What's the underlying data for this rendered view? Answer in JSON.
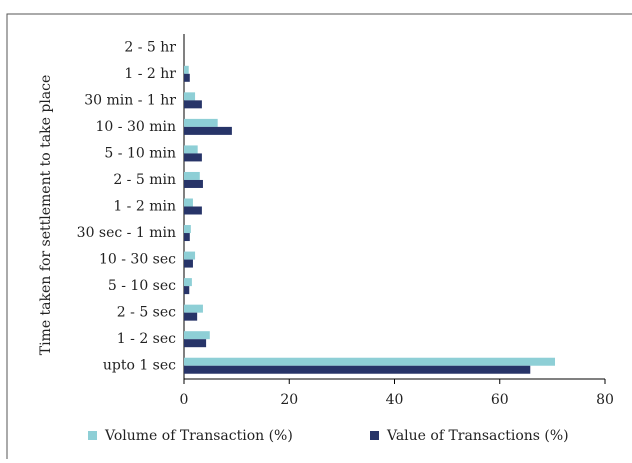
{
  "chart_data": {
    "type": "hbar",
    "y_label": "Time taken for settlement to take place",
    "categories": [
      "upto 1 sec",
      "1 - 2 sec",
      "2 - 5 sec",
      "5 - 10 sec",
      "10 - 30 sec",
      "30 sec - 1 min",
      "1 - 2 min",
      "2 - 5 min",
      "5 - 10 min",
      "10 - 30 min",
      "30 min - 1 hr",
      "1 - 2 hr",
      "2 - 5 hr"
    ],
    "series": [
      {
        "name": "Volume of Transaction (%)",
        "color": "#8ecfd6",
        "values": [
          70.5,
          4.9,
          3.6,
          1.5,
          2.1,
          1.3,
          1.7,
          3.0,
          2.6,
          6.4,
          2.1,
          0.9,
          0
        ]
      },
      {
        "name": "Value of Transactions (%)",
        "color": "#273468",
        "values": [
          65.8,
          4.2,
          2.5,
          1.0,
          1.7,
          1.1,
          3.4,
          3.6,
          3.4,
          9.1,
          3.4,
          1.1,
          0
        ]
      }
    ],
    "xlim": [
      0,
      80
    ],
    "xticks": [
      0,
      20,
      40,
      60,
      80
    ],
    "legend": "bottom"
  }
}
